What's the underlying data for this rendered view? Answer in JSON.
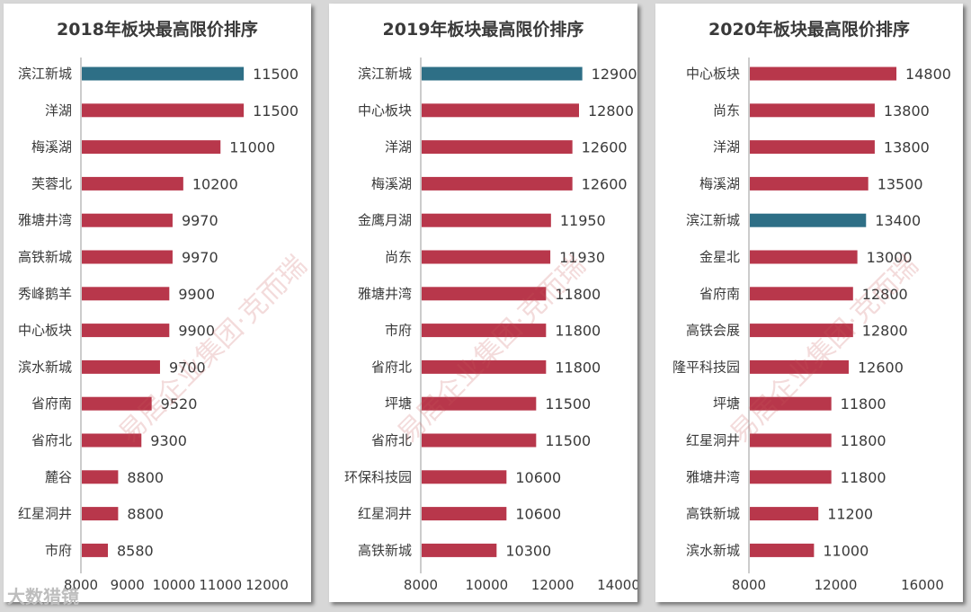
{
  "chart_data": [
    {
      "type": "bar",
      "orientation": "horizontal",
      "title": "2018年板块最高限价排序",
      "categories": [
        "滨江新城",
        "洋湖",
        "梅溪湖",
        "芙蓉北",
        "雅塘井湾",
        "高铁新城",
        "秀峰鹅羊",
        "中心板块",
        "滨水新城",
        "省府南",
        "省府北",
        "麓谷",
        "红星洞井",
        "市府"
      ],
      "values": [
        11500,
        11500,
        11000,
        10200,
        9970,
        9970,
        9900,
        9900,
        9700,
        9520,
        9300,
        8800,
        8800,
        8580
      ],
      "highlight": [
        "滨江新城"
      ],
      "xlim": [
        8000,
        12000
      ],
      "xticks": [
        8000,
        9000,
        10000,
        11000,
        12000
      ],
      "xlabel": "",
      "ylabel": "",
      "grid": false
    },
    {
      "type": "bar",
      "orientation": "horizontal",
      "title": "2019年板块最高限价排序",
      "categories": [
        "滨江新城",
        "中心板块",
        "洋湖",
        "梅溪湖",
        "金鹰月湖",
        "尚东",
        "雅塘井湾",
        "市府",
        "省府北",
        "坪塘",
        "省府北",
        "环保科技园",
        "红星洞井",
        "高铁新城"
      ],
      "values": [
        12900,
        12800,
        12600,
        12600,
        11950,
        11930,
        11800,
        11800,
        11800,
        11500,
        11500,
        10600,
        10600,
        10300
      ],
      "highlight": [
        "滨江新城"
      ],
      "xlim": [
        8000,
        14000
      ],
      "xticks": [
        8000,
        10000,
        12000,
        14000
      ],
      "xlabel": "",
      "ylabel": "",
      "grid": false
    },
    {
      "type": "bar",
      "orientation": "horizontal",
      "title": "2020年板块最高限价排序",
      "categories": [
        "中心板块",
        "尚东",
        "洋湖",
        "梅溪湖",
        "滨江新城",
        "金星北",
        "省府南",
        "高铁会展",
        "隆平科技园",
        "坪塘",
        "红星洞井",
        "雅塘井湾",
        "高铁新城",
        "滨水新城"
      ],
      "values": [
        14800,
        13800,
        13800,
        13500,
        13400,
        13000,
        12800,
        12800,
        12600,
        11800,
        11800,
        11800,
        11200,
        11000
      ],
      "highlight": [
        "滨江新城"
      ],
      "xlim": [
        8000,
        16000
      ],
      "xticks": [
        8000,
        12000,
        16000
      ],
      "xlabel": "",
      "ylabel": "",
      "grid": false
    }
  ],
  "colors": {
    "bar": "#b8374b",
    "highlight": "#2e6f86",
    "text": "#3a3a3a",
    "axis": "#999999"
  },
  "watermark": "易居企业集团·克而瑞",
  "footer_mark": "大数猎镜"
}
